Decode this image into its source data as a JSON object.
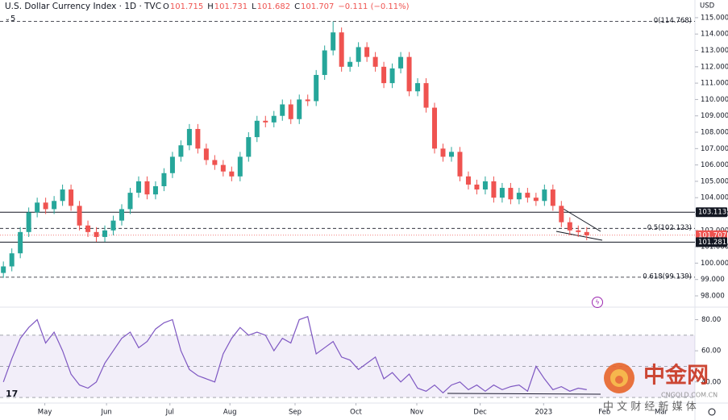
{
  "header": {
    "title": "U.S. Dollar Currency Index · 1D · TVC",
    "ohlc": [
      {
        "key": "O",
        "value": "101.715"
      },
      {
        "key": "H",
        "value": "101.731"
      },
      {
        "key": "L",
        "value": "101.682"
      },
      {
        "key": "C",
        "value": "101.707"
      }
    ],
    "change": "−0.111 (−0.11%)",
    "indicators": "5"
  },
  "watermark": {
    "brand": "中金网",
    "site": "CNGOLD.COM.CN",
    "slogan": "中 文 财 经 新 媒 体"
  },
  "chart_data": {
    "type": "candlestick",
    "currency": "USD",
    "xlim": [
      -0.4,
      81.8
    ],
    "xticks": [
      {
        "value": 4.9,
        "label": "May"
      },
      {
        "value": 12.2,
        "label": "Jun"
      },
      {
        "value": 19.7,
        "label": "Jul"
      },
      {
        "value": 26.8,
        "label": "Aug"
      },
      {
        "value": 34.5,
        "label": "Sep"
      },
      {
        "value": 41.7,
        "label": "Oct"
      },
      {
        "value": 48.9,
        "label": "Nov"
      },
      {
        "value": 56.4,
        "label": "Dec"
      },
      {
        "value": 63.9,
        "label": "2023"
      },
      {
        "value": 71.1,
        "label": "Feb"
      },
      {
        "value": 77.8,
        "label": "Mar"
      }
    ],
    "ylim": [
      97.36,
      116.08
    ],
    "yticks": [
      {
        "value": 98,
        "label": "98.000"
      },
      {
        "value": 99,
        "label": "99.000"
      },
      {
        "value": 100,
        "label": "100.000"
      },
      {
        "value": 101,
        "label": "101.000"
      },
      {
        "value": 102,
        "label": "102.000"
      },
      {
        "value": 103,
        "label": "103.000"
      },
      {
        "value": 104,
        "label": "104.000"
      },
      {
        "value": 105,
        "label": "105.000"
      },
      {
        "value": 106,
        "label": "106.000"
      },
      {
        "value": 107,
        "label": "107.000"
      },
      {
        "value": 108,
        "label": "108.000"
      },
      {
        "value": 109,
        "label": "109.000"
      },
      {
        "value": 110,
        "label": "110.000"
      },
      {
        "value": 111,
        "label": "111.000"
      },
      {
        "value": 112,
        "label": "112.000"
      },
      {
        "value": 113,
        "label": "113.000"
      },
      {
        "value": 114,
        "label": "114.000"
      },
      {
        "value": 115,
        "label": "115.000"
      }
    ],
    "up_color": "#26a69a",
    "down_color": "#ef5350",
    "open": [
      99.4,
      99.8,
      100.6,
      101.9,
      103.1,
      103.7,
      103.3,
      103.8,
      104.5,
      103.5,
      102.3,
      101.9,
      101.6,
      102.0,
      102.6,
      103.3,
      104.3,
      105.0,
      104.2,
      104.7,
      105.5,
      106.5,
      107.2,
      108.2,
      107.0,
      106.3,
      106.0,
      105.6,
      105.3,
      106.5,
      107.7,
      108.7,
      108.6,
      109.0,
      109.7,
      108.8,
      110.0,
      109.9,
      111.5,
      113.0,
      114.1,
      112.0,
      112.3,
      113.2,
      112.6,
      112.0,
      111.0,
      111.9,
      112.6,
      110.5,
      111.0,
      109.5,
      107.0,
      106.5,
      106.8,
      105.3,
      104.8,
      104.5,
      105.0,
      104.0,
      104.6,
      103.9,
      104.3,
      104.0,
      103.8,
      104.5,
      103.5,
      102.5,
      102.0,
      101.9
    ],
    "high": [
      100.1,
      100.9,
      102.2,
      103.4,
      104.0,
      104.0,
      104.1,
      104.8,
      104.8,
      103.8,
      102.6,
      102.2,
      102.3,
      102.9,
      103.6,
      104.6,
      105.3,
      105.3,
      105.0,
      105.8,
      106.8,
      107.5,
      108.5,
      108.5,
      107.3,
      106.6,
      106.3,
      105.9,
      106.8,
      108.0,
      109.0,
      109.0,
      109.3,
      110.0,
      110.0,
      110.3,
      110.3,
      111.8,
      113.3,
      114.77,
      114.4,
      112.6,
      113.5,
      113.5,
      112.9,
      112.3,
      112.2,
      112.9,
      112.9,
      111.3,
      111.3,
      109.8,
      107.3,
      107.1,
      107.1,
      105.6,
      105.1,
      105.3,
      105.3,
      104.9,
      104.9,
      104.6,
      104.6,
      104.3,
      104.8,
      104.8,
      103.8,
      102.8,
      102.3,
      102.2
    ],
    "low": [
      99.1,
      99.5,
      100.3,
      101.6,
      102.8,
      103.0,
      103.0,
      103.5,
      103.2,
      102.0,
      101.6,
      101.3,
      101.3,
      101.7,
      102.3,
      103.0,
      104.0,
      103.9,
      103.9,
      104.4,
      105.2,
      106.2,
      106.9,
      106.7,
      106.0,
      105.7,
      105.3,
      105.0,
      105.0,
      106.2,
      107.4,
      108.3,
      108.3,
      108.7,
      108.5,
      108.5,
      109.6,
      109.6,
      111.2,
      112.7,
      111.7,
      111.7,
      112.0,
      112.3,
      111.7,
      110.7,
      110.7,
      111.6,
      110.2,
      110.2,
      109.2,
      106.7,
      106.2,
      106.2,
      105.0,
      104.5,
      104.2,
      104.2,
      103.7,
      103.7,
      103.6,
      103.6,
      103.7,
      103.5,
      103.5,
      103.2,
      102.2,
      101.7,
      101.6,
      101.4
    ],
    "close": [
      99.8,
      100.6,
      101.9,
      103.1,
      103.7,
      103.3,
      103.8,
      104.5,
      103.5,
      102.3,
      101.9,
      101.6,
      102.0,
      102.6,
      103.3,
      104.3,
      105.0,
      104.2,
      104.7,
      105.5,
      106.5,
      107.2,
      108.2,
      107.0,
      106.3,
      106.0,
      105.6,
      105.3,
      106.5,
      107.7,
      108.7,
      108.6,
      109.0,
      109.7,
      108.8,
      110.0,
      109.9,
      111.5,
      113.0,
      114.1,
      112.0,
      112.3,
      113.2,
      112.6,
      112.0,
      111.0,
      111.9,
      112.6,
      110.5,
      111.0,
      109.5,
      107.0,
      106.5,
      106.8,
      105.3,
      104.8,
      104.5,
      105.0,
      104.0,
      104.6,
      103.9,
      104.3,
      104.0,
      103.8,
      104.5,
      103.5,
      102.5,
      102.0,
      101.9,
      101.7
    ],
    "levels": [
      {
        "value": 114.768,
        "label": "0(114.768)",
        "style": "dashed"
      },
      {
        "value": 103.113,
        "style": "solid"
      },
      {
        "value": 102.123,
        "label": "0.5(102.123)",
        "style": "dashed"
      },
      {
        "value": 101.707,
        "style": "current"
      },
      {
        "value": 101.281,
        "style": "solid"
      },
      {
        "value": 99.139,
        "label": "0.618(99.139)",
        "style": "dashed"
      }
    ],
    "rsi": {
      "color": "#7e57c2",
      "ylim": [
        29,
        87
      ],
      "yticks": [
        {
          "value": 80,
          "label": "80.00"
        },
        {
          "value": 60,
          "label": "60.00"
        },
        {
          "value": 40,
          "label": "40.00"
        }
      ],
      "bands": [
        70,
        50,
        30
      ],
      "values": [
        40,
        55,
        68,
        75,
        80,
        65,
        72,
        60,
        45,
        38,
        36,
        40,
        52,
        60,
        68,
        72,
        62,
        66,
        74,
        78,
        80,
        60,
        48,
        44,
        42,
        40,
        58,
        68,
        75,
        70,
        72,
        70,
        60,
        68,
        65,
        80,
        82,
        58,
        62,
        66,
        56,
        54,
        48,
        52,
        56,
        42,
        46,
        40,
        45,
        36,
        34,
        38,
        33,
        38,
        40,
        35,
        38,
        34,
        38,
        35,
        37,
        38,
        34,
        50,
        42,
        35,
        37,
        34,
        36,
        35
      ]
    }
  }
}
